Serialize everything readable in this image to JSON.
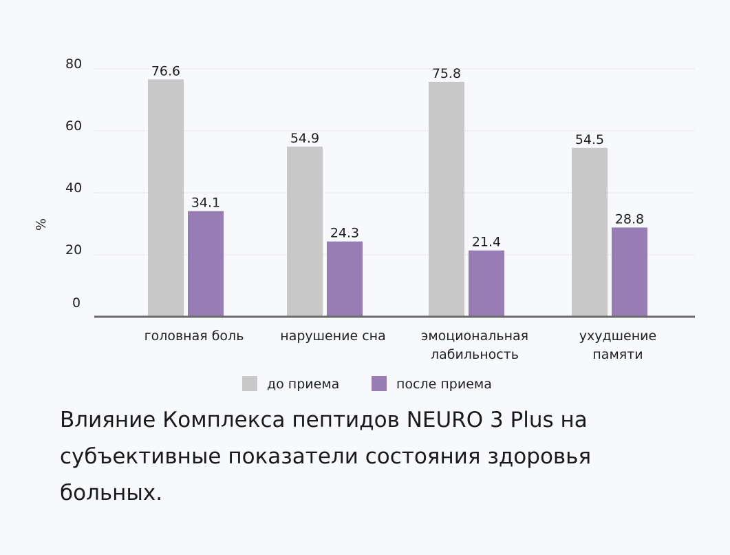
{
  "chart_data": {
    "type": "bar",
    "title": "",
    "xlabel": "",
    "ylabel": "%",
    "ylim": [
      0,
      80
    ],
    "yticks": [
      0,
      20,
      40,
      60,
      80
    ],
    "grid": true,
    "categories": [
      [
        "головная боль"
      ],
      [
        "нарушение сна"
      ],
      [
        "эмоциональная",
        "лабильность"
      ],
      [
        "ухудшение",
        "памяти"
      ]
    ],
    "series": [
      {
        "name": "до приема",
        "color": "#c8c8c8",
        "values": [
          76.6,
          54.9,
          75.8,
          54.5
        ]
      },
      {
        "name": "после приема",
        "color": "#977db3",
        "values": [
          34.1,
          24.3,
          21.4,
          28.8
        ]
      }
    ],
    "value_labels": [
      [
        "76.6",
        "54.9",
        "75.8",
        "54.5"
      ],
      [
        "34.1",
        "24.3",
        "21.4",
        "28.8"
      ]
    ],
    "legend": {
      "placement": "bottom-center"
    }
  },
  "caption": "Влияние Комплекса пептидов NEURO 3 Plus на субъективные показатели состояния здоровья больных."
}
